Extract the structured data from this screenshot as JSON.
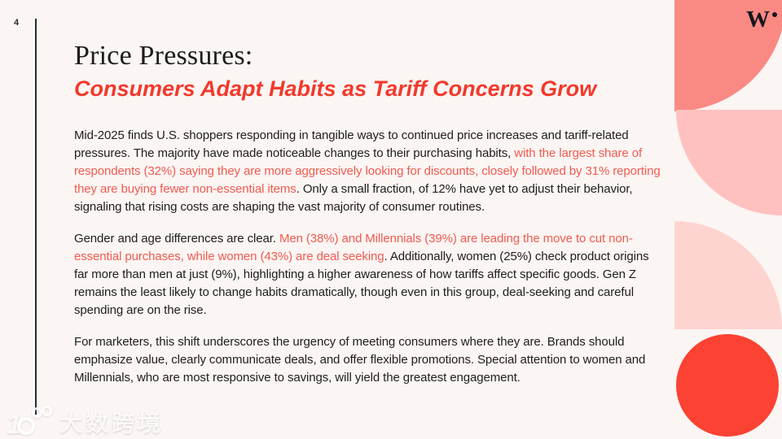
{
  "page": {
    "number": "4"
  },
  "brand": {
    "logo_letter": "W",
    "logo_mark": "w-dot-logo-icon"
  },
  "header": {
    "title": "Price Pressures:",
    "subtitle": "Consumers Adapt Habits as Tariff Concerns Grow"
  },
  "paragraphs": [
    {
      "segments": [
        {
          "style": "default",
          "text": "Mid-2025 finds U.S. shoppers responding in tangible ways to continued price increases and tariff-related pressures. The majority have made noticeable changes to their purchasing habits, "
        },
        {
          "style": "accent",
          "text": "with the largest share of respondents (32%) saying they are more aggressively looking for discounts, closely followed by 31% reporting they are buying fewer non-essential items"
        },
        {
          "style": "default",
          "text": ". Only a small fraction, of 12% have yet to adjust their behavior, signaling that rising costs are shaping the vast majority of consumer routines."
        }
      ]
    },
    {
      "segments": [
        {
          "style": "default",
          "text": "Gender and age differences are clear. "
        },
        {
          "style": "accent",
          "text": "Men (38%) and Millennials (39%) are leading the move to cut non-essential purchases, while women (43%) are deal seeking"
        },
        {
          "style": "default",
          "text": ". Additionally, women (25%) check product origins far more than men at just (9%), highlighting a higher awareness of how tariffs affect specific goods. Gen Z remains the least likely to change habits dramatically, though even in this group, deal-seeking and careful spending are on the rise."
        }
      ]
    },
    {
      "segments": [
        {
          "style": "default",
          "text": "For marketers, this shift underscores the urgency of meeting consumers where they are. Brands should emphasize value, clearly communicate deals, and offer flexible promotions. Special attention to women and Millennials, who are most responsive to savings, will yield the greatest engagement."
        },
        {
          "style": "accent",
          "text": ""
        },
        {
          "style": "default",
          "text": ""
        }
      ]
    }
  ],
  "watermark": {
    "icon": "100-rings-logo-icon",
    "text": "大数跨境",
    "one": "1"
  },
  "colors": {
    "bg": "#FBF5F3",
    "ink": "#1C1C1C",
    "body": "#202020",
    "accent-strong": "#F2392B",
    "accent-body": "#F05B50",
    "coral": "#FB8983",
    "pink-mid": "#FFC1BF",
    "pink-light": "#FED4D1",
    "red-circle": "#FC4233",
    "divider": "#232D36"
  }
}
